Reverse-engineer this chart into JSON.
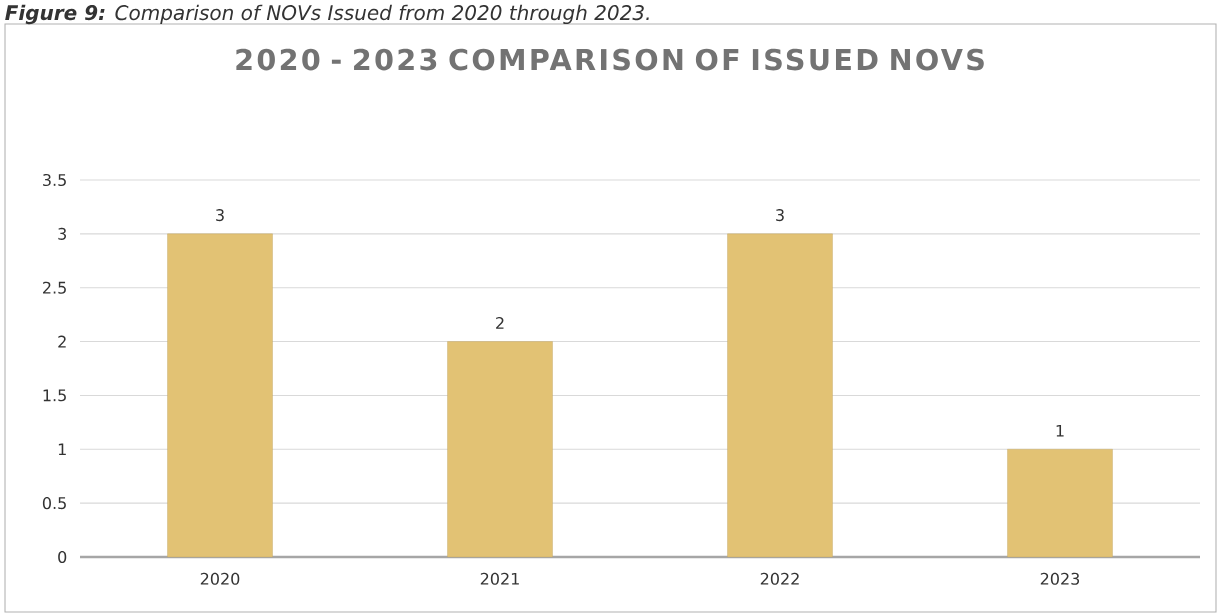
{
  "chart_data": {
    "type": "bar",
    "title": "2020 - 2023 COMPARISON OF ISSUED NOVS",
    "annotations": [
      "**Figure 9:** Comparison of NOVs Issued from 2020 through 2023."
    ],
    "categories": [
      "2020",
      "2021",
      "2022",
      "2023"
    ],
    "values": [
      3,
      2,
      3,
      1
    ],
    "color": "#e2c274",
    "ylim": [
      0,
      3.5
    ],
    "yticks": [
      0,
      0.5,
      1,
      1.5,
      2,
      2.5,
      3,
      3.5
    ],
    "grid": "y",
    "data_labels": true
  }
}
